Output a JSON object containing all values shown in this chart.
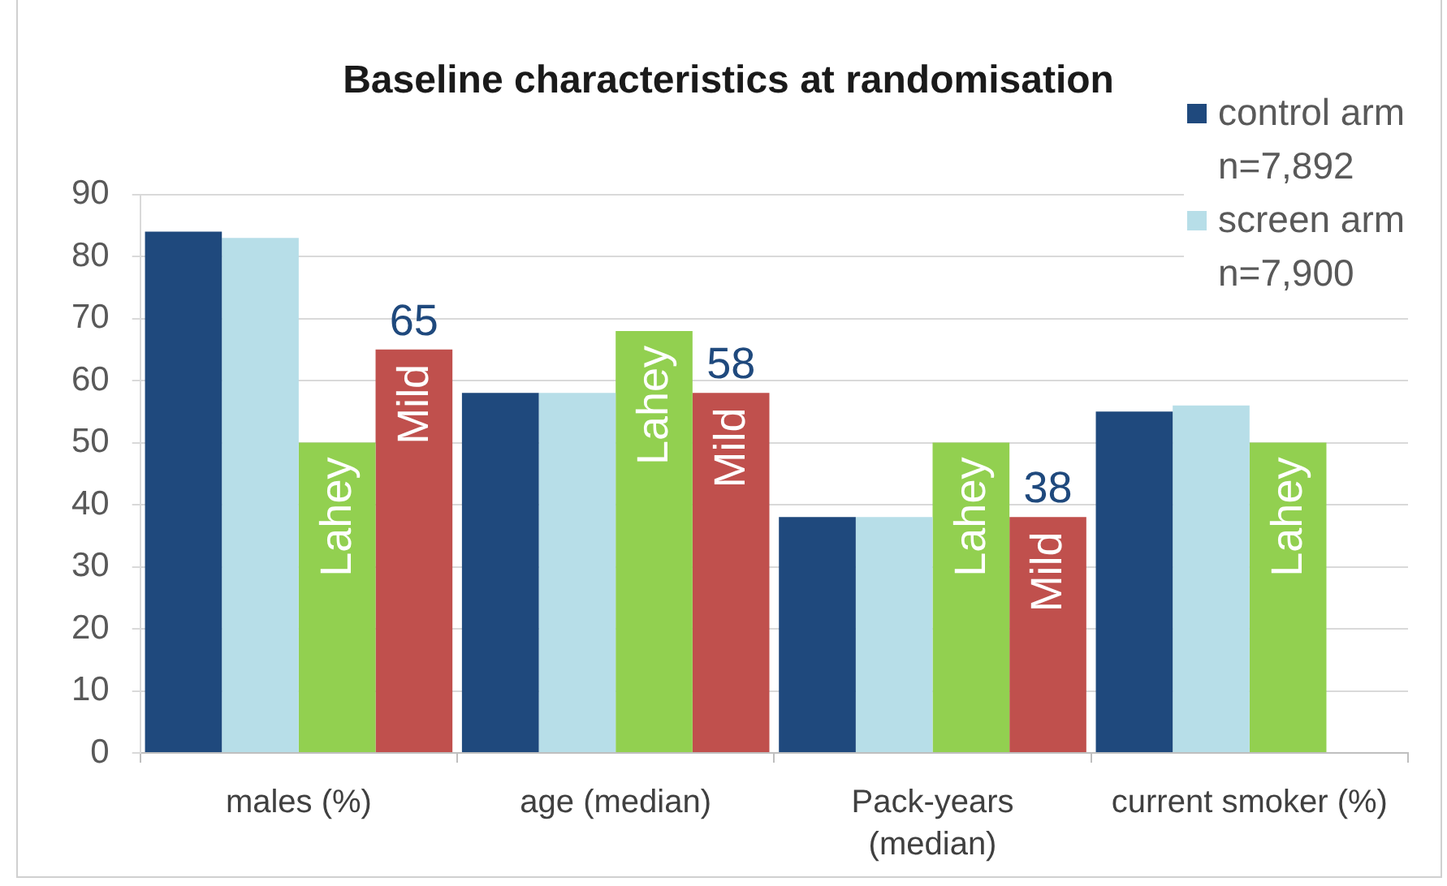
{
  "chart_data": {
    "type": "bar",
    "title": "Baseline characteristics at randomisation",
    "categories": [
      "males (%)",
      "age (median)",
      "Pack-years (median)",
      "current smoker (%)"
    ],
    "series": [
      {
        "name": "control arm n=7,892",
        "color": "#1f497d",
        "values": [
          84,
          58,
          38,
          55
        ]
      },
      {
        "name": "screen arm n=7,900",
        "color": "#b7dee8",
        "values": [
          83,
          58,
          38,
          56
        ]
      },
      {
        "name": "Lahey",
        "color": "#92d050",
        "values": [
          50,
          68,
          50,
          50
        ]
      },
      {
        "name": "Mild",
        "color": "#c0504d",
        "values": [
          65,
          58,
          38,
          null
        ],
        "value_labels": [
          "65",
          "58",
          "38",
          null
        ]
      }
    ],
    "ylim": [
      0,
      90
    ],
    "yticks": [
      0,
      10,
      20,
      30,
      40,
      50,
      60,
      70,
      80,
      90
    ],
    "grid": "y",
    "legend": "top right"
  }
}
